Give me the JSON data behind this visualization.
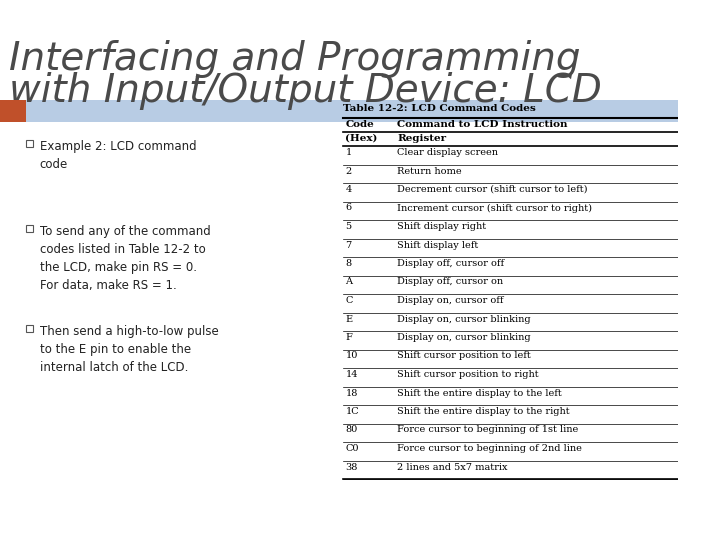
{
  "title_line1": "Interfacing and Programming",
  "title_line2": "with Input/Output Device: LCD",
  "title_color": "#4a4a4a",
  "title_fontsize": 28,
  "bg_color": "#ffffff",
  "header_bar_color": "#b8cce4",
  "orange_accent_color": "#c0502a",
  "bullet_color": "#5a5a5a",
  "bullets": [
    "Example 2: LCD command\ncode",
    "To send any of the command\ncodes listed in Table 12-2 to\nthe LCD, make pin RS = 0.\nFor data, make RS = 1.",
    "Then send a high-to-low pulse\nto the E pin to enable the\ninternal latch of the LCD."
  ],
  "table_title": "Table 12-2: LCD Command Codes",
  "table_header_col1": "Code",
  "table_header_col2": "Command to LCD Instruction",
  "table_subheader_col1": "(Hex)",
  "table_subheader_col2": "Register",
  "table_rows": [
    [
      "1",
      "Clear display screen"
    ],
    [
      "2",
      "Return home"
    ],
    [
      "4",
      "Decrement cursor (shift cursor to left)"
    ],
    [
      "6",
      "Increment cursor (shift cursor to right)"
    ],
    [
      "5",
      "Shift display right"
    ],
    [
      "7",
      "Shift display left"
    ],
    [
      "8",
      "Display off, cursor off"
    ],
    [
      "A",
      "Display off, cursor on"
    ],
    [
      "C",
      "Display on, cursor off"
    ],
    [
      "E",
      "Display on, cursor blinking"
    ],
    [
      "F",
      "Display on, cursor blinking"
    ],
    [
      "10",
      "Shift cursor position to left"
    ],
    [
      "14",
      "Shift cursor position to right"
    ],
    [
      "18",
      "Shift the entire display to the left"
    ],
    [
      "1C",
      "Shift the entire display to the right"
    ],
    [
      "80",
      "Force cursor to beginning of 1st line"
    ],
    [
      "C0",
      "Force cursor to beginning of 2nd line"
    ],
    [
      "38",
      "2 lines and 5x7 matrix"
    ]
  ]
}
